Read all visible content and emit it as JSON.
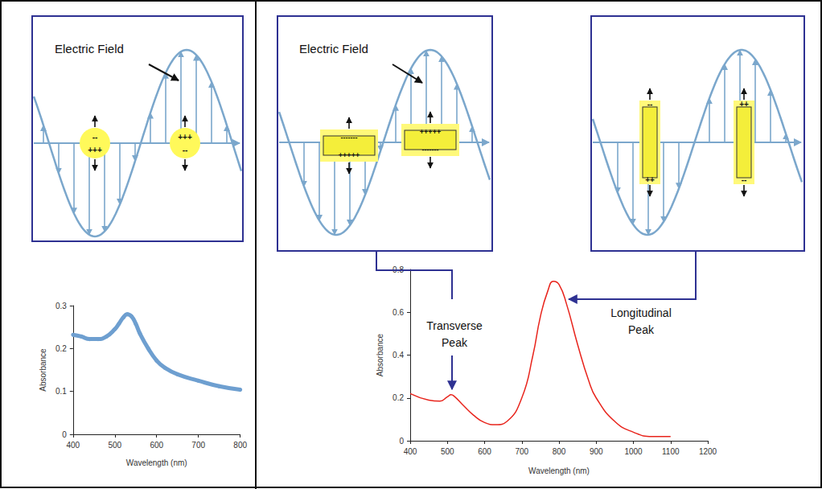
{
  "diagrams": [
    {
      "label": "Electric Field",
      "shape": "sphere",
      "charges": [
        {
          "top": "--",
          "bottom": "+++"
        },
        {
          "top": "+++",
          "bottom": "--"
        }
      ]
    },
    {
      "label": "Electric Field",
      "shape": "horizontal rod",
      "charges": [
        {
          "top": "-------",
          "bottom": "+++++"
        },
        {
          "top": "+++++",
          "bottom": "-------"
        }
      ]
    },
    {
      "shape": "vertical rod",
      "charges": [
        {
          "top": "--",
          "bottom": "++"
        },
        {
          "top": "++",
          "bottom": "--"
        }
      ]
    }
  ],
  "chart_data": [
    {
      "type": "line",
      "x_label": "Wavelength (nm)",
      "y_label": "Absorbance",
      "x": [
        400,
        420,
        440,
        460,
        480,
        500,
        510,
        520,
        530,
        540,
        550,
        560,
        580,
        600,
        620,
        650,
        700,
        750,
        800
      ],
      "values": [
        0.232,
        0.228,
        0.222,
        0.222,
        0.228,
        0.245,
        0.258,
        0.272,
        0.28,
        0.275,
        0.258,
        0.235,
        0.2,
        0.172,
        0.155,
        0.14,
        0.125,
        0.112,
        0.104
      ],
      "color": "#6e9fd0",
      "marker": "circle",
      "xlim": [
        400,
        800
      ],
      "xticks": [
        400,
        500,
        600,
        700,
        800
      ],
      "ylim": [
        0,
        0.3
      ],
      "yticks": [
        0,
        0.1,
        0.2,
        0.3
      ],
      "grid": false
    },
    {
      "type": "line",
      "x_label": "Wavelength (nm)",
      "y_label": "Absorbance",
      "x": [
        400,
        450,
        480,
        500,
        510,
        520,
        540,
        570,
        600,
        630,
        660,
        700,
        730,
        750,
        770,
        785,
        800,
        820,
        850,
        880,
        900,
        950,
        1000,
        1050,
        1080,
        1100
      ],
      "values": [
        0.22,
        0.19,
        0.185,
        0.205,
        0.215,
        0.205,
        0.17,
        0.12,
        0.085,
        0.075,
        0.09,
        0.2,
        0.4,
        0.58,
        0.7,
        0.745,
        0.73,
        0.64,
        0.45,
        0.28,
        0.2,
        0.09,
        0.04,
        0.02,
        0.02,
        0.02
      ],
      "color": "#e8241c",
      "marker": "none",
      "xlim": [
        400,
        1200
      ],
      "xticks": [
        400,
        500,
        600,
        700,
        800,
        900,
        1000,
        1100,
        1200
      ],
      "ylim": [
        0,
        0.8
      ],
      "yticks": [
        0,
        0.2,
        0.4,
        0.6,
        0.8
      ],
      "grid": false,
      "annotations": [
        "Transverse Peak",
        "Longitudinal Peak"
      ]
    }
  ]
}
